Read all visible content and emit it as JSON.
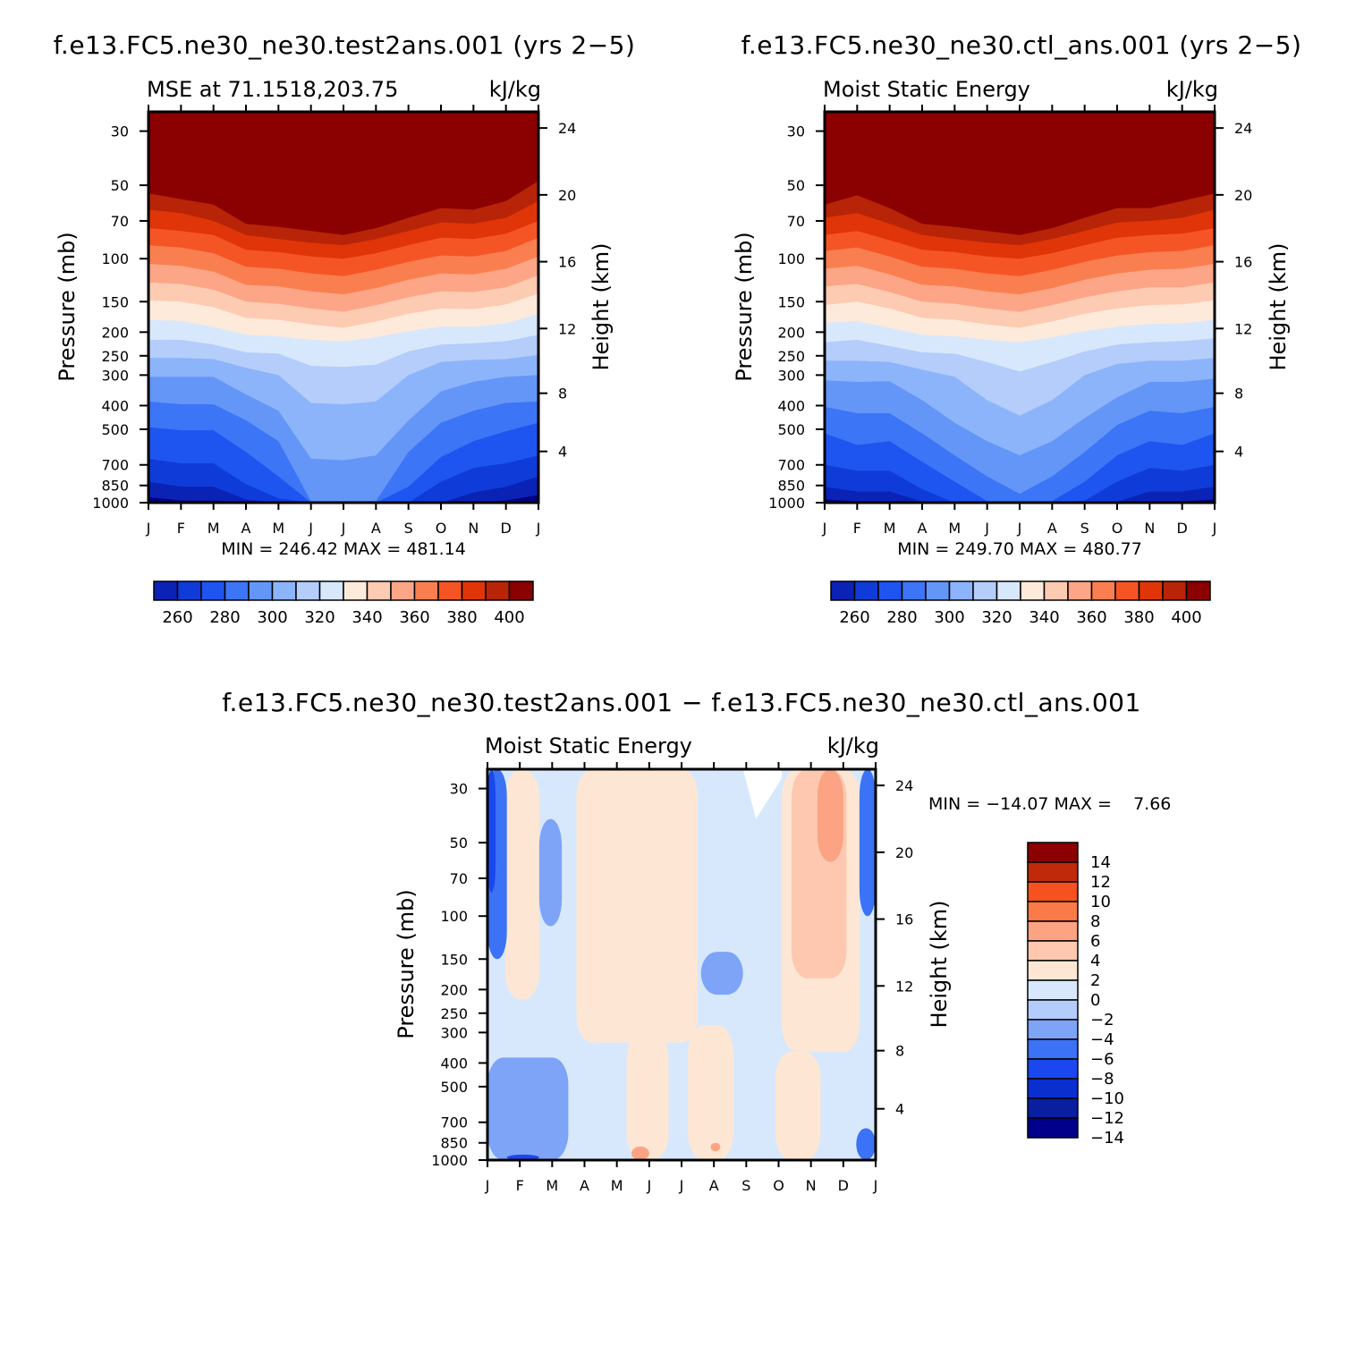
{
  "chart_data": [
    {
      "type": "heatmap",
      "panel": "top-left",
      "title": "f.e13.FC5.ne30_ne30.test2ans.001 (yrs 2−5)",
      "subtitle_left": "MSE at 71.1518,203.75",
      "subtitle_right": "kJ/kg",
      "xlabel": "",
      "ylabel": "Pressure (mb)",
      "y2label": "Height (km)",
      "x": [
        "J",
        "F",
        "M",
        "A",
        "M",
        "J",
        "J",
        "A",
        "S",
        "O",
        "N",
        "D",
        "J"
      ],
      "y_pressure_ticks": [
        30,
        50,
        70,
        100,
        150,
        200,
        250,
        300,
        400,
        500,
        700,
        850,
        1000
      ],
      "y_height_ticks": [
        4,
        8,
        12,
        16,
        20,
        24
      ],
      "ylim_mb": [
        1000,
        25
      ],
      "stats": "MIN = 246.42 MAX = 481.14",
      "colorbar": {
        "levels": [
          250,
          260,
          270,
          280,
          290,
          300,
          310,
          320,
          330,
          340,
          350,
          360,
          370,
          380,
          390,
          400
        ],
        "labels": [
          "260",
          "280",
          "300",
          "320",
          "340",
          "360",
          "380",
          "400"
        ],
        "orientation": "horizontal"
      },
      "contour_levels_pressure_mb": {
        "400": [
          54,
          57,
          60,
          72,
          74,
          77,
          80,
          75,
          68,
          62,
          63,
          58,
          48
        ],
        "390": [
          63,
          65,
          70,
          80,
          83,
          86,
          88,
          83,
          77,
          71,
          72,
          68,
          58
        ],
        "380": [
          75,
          77,
          80,
          92,
          94,
          98,
          100,
          95,
          88,
          82,
          83,
          79,
          70
        ],
        "370": [
          88,
          90,
          95,
          108,
          110,
          115,
          118,
          111,
          103,
          97,
          98,
          93,
          82
        ],
        "360": [
          105,
          107,
          113,
          128,
          130,
          136,
          140,
          132,
          122,
          115,
          116,
          110,
          98
        ],
        "350": [
          125,
          127,
          134,
          150,
          153,
          160,
          165,
          155,
          144,
          136,
          137,
          131,
          117
        ],
        "340": [
          148,
          150,
          158,
          175,
          178,
          186,
          192,
          181,
          168,
          160,
          161,
          154,
          139
        ],
        "330": [
          178,
          180,
          190,
          205,
          208,
          215,
          218,
          210,
          198,
          190,
          190,
          184,
          168
        ],
        "320": [
          215,
          215,
          225,
          242,
          245,
          275,
          278,
          272,
          240,
          225,
          222,
          218,
          205
        ],
        "310": [
          255,
          255,
          258,
          280,
          300,
          390,
          395,
          385,
          300,
          265,
          260,
          258,
          248
        ],
        "300": [
          305,
          305,
          305,
          360,
          420,
          660,
          670,
          640,
          460,
          350,
          320,
          305,
          300
        ],
        "290": [
          385,
          395,
          395,
          460,
          560,
          985,
          985,
          985,
          620,
          470,
          420,
          390,
          385
        ],
        "280": [
          490,
          505,
          505,
          620,
          780,
          1000,
          1000,
          1000,
          860,
          650,
          560,
          510,
          470
        ],
        "270": [
          660,
          690,
          690,
          840,
          960,
          1000,
          1000,
          1000,
          1000,
          820,
          720,
          690,
          640
        ],
        "260": [
          820,
          860,
          860,
          970,
          1000,
          1000,
          1000,
          1000,
          1000,
          1000,
          910,
          860,
          780
        ],
        "250": [
          950,
          980,
          980,
          1000,
          1000,
          1000,
          1000,
          1000,
          1000,
          1000,
          1000,
          980,
          930
        ]
      }
    },
    {
      "type": "heatmap",
      "panel": "top-right",
      "title": "f.e13.FC5.ne30_ne30.ctl_ans.001 (yrs 2−5)",
      "subtitle_left": "Moist Static Energy",
      "subtitle_right": "kJ/kg",
      "xlabel": "",
      "ylabel": "Pressure (mb)",
      "y2label": "Height (km)",
      "x": [
        "J",
        "F",
        "M",
        "A",
        "M",
        "J",
        "J",
        "A",
        "S",
        "O",
        "N",
        "D",
        "J"
      ],
      "y_pressure_ticks": [
        30,
        50,
        70,
        100,
        150,
        200,
        250,
        300,
        400,
        500,
        700,
        850,
        1000
      ],
      "y_height_ticks": [
        4,
        8,
        12,
        16,
        20,
        24
      ],
      "ylim_mb": [
        1000,
        25
      ],
      "stats": "MIN = 249.70 MAX = 480.77",
      "colorbar": {
        "levels": [
          250,
          260,
          270,
          280,
          290,
          300,
          310,
          320,
          330,
          340,
          350,
          360,
          370,
          380,
          390,
          400
        ],
        "labels": [
          "260",
          "280",
          "300",
          "320",
          "340",
          "360",
          "380",
          "400"
        ],
        "orientation": "horizontal"
      },
      "contour_levels_pressure_mb": {
        "400": [
          60,
          55,
          62,
          72,
          74,
          77,
          80,
          75,
          68,
          62,
          62,
          58,
          54
        ],
        "390": [
          68,
          65,
          72,
          80,
          83,
          86,
          88,
          83,
          77,
          71,
          70,
          68,
          63
        ],
        "380": [
          80,
          77,
          84,
          92,
          94,
          98,
          100,
          95,
          88,
          82,
          80,
          79,
          75
        ],
        "370": [
          93,
          90,
          98,
          108,
          110,
          115,
          118,
          111,
          103,
          97,
          94,
          93,
          88
        ],
        "360": [
          110,
          107,
          116,
          128,
          130,
          136,
          140,
          132,
          122,
          115,
          111,
          110,
          105
        ],
        "350": [
          130,
          127,
          137,
          150,
          153,
          160,
          165,
          155,
          144,
          136,
          131,
          131,
          125
        ],
        "340": [
          155,
          150,
          160,
          175,
          178,
          186,
          192,
          181,
          168,
          160,
          155,
          154,
          148
        ],
        "330": [
          183,
          180,
          192,
          205,
          208,
          215,
          220,
          210,
          198,
          190,
          185,
          184,
          178
        ],
        "320": [
          220,
          215,
          228,
          242,
          245,
          265,
          290,
          265,
          240,
          225,
          220,
          218,
          212
        ],
        "310": [
          262,
          262,
          265,
          285,
          305,
          380,
          440,
          380,
          300,
          270,
          262,
          262,
          255
        ],
        "300": [
          315,
          320,
          318,
          380,
          470,
          560,
          640,
          560,
          450,
          370,
          320,
          320,
          310
        ],
        "290": [
          405,
          430,
          430,
          520,
          640,
          780,
          920,
          780,
          620,
          480,
          420,
          430,
          405
        ],
        "280": [
          520,
          580,
          560,
          680,
          820,
          985,
          1000,
          985,
          820,
          640,
          560,
          580,
          520
        ],
        "270": [
          700,
          740,
          740,
          880,
          1000,
          1000,
          1000,
          1000,
          980,
          820,
          720,
          740,
          700
        ],
        "260": [
          860,
          900,
          900,
          990,
          1000,
          1000,
          1000,
          1000,
          1000,
          990,
          900,
          900,
          860
        ],
        "250": [
          970,
          990,
          990,
          1000,
          1000,
          1000,
          1000,
          1000,
          1000,
          1000,
          990,
          990,
          970
        ]
      }
    },
    {
      "type": "heatmap",
      "panel": "bottom",
      "title": "f.e13.FC5.ne30_ne30.test2ans.001 − f.e13.FC5.ne30_ne30.ctl_ans.001",
      "subtitle_left": "Moist Static Energy",
      "subtitle_right": "kJ/kg",
      "xlabel": "",
      "ylabel": "Pressure (mb)",
      "y2label": "Height (km)",
      "x": [
        "J",
        "F",
        "M",
        "A",
        "M",
        "J",
        "J",
        "A",
        "S",
        "O",
        "N",
        "D",
        "J"
      ],
      "y_pressure_ticks": [
        30,
        50,
        70,
        100,
        150,
        200,
        250,
        300,
        400,
        500,
        700,
        850,
        1000
      ],
      "y_height_ticks": [
        4,
        8,
        12,
        16,
        20,
        24
      ],
      "ylim_mb": [
        1000,
        25
      ],
      "stats": "MIN = −14.07 MAX =    7.66",
      "colorbar": {
        "levels": [
          -14,
          -12,
          -10,
          -8,
          -6,
          -4,
          -2,
          0,
          2,
          4,
          6,
          8,
          10,
          12,
          14
        ],
        "labels": [
          "14",
          "12",
          "10",
          "8",
          "6",
          "4",
          "2",
          "0",
          "−2",
          "−4",
          "−6",
          "−8",
          "−10",
          "−12",
          "−14"
        ],
        "orientation": "vertical"
      },
      "regions": [
        {
          "level": -2,
          "month": [
            0.0,
            12.0
          ],
          "mb": [
            25,
            1000
          ]
        },
        {
          "level": 0,
          "month": [
            0.55,
            1.6
          ],
          "mb": [
            25,
            220
          ]
        },
        {
          "level": 0,
          "month": [
            2.75,
            6.5
          ],
          "mb": [
            25,
            330
          ]
        },
        {
          "level": 0,
          "month": [
            4.3,
            5.6
          ],
          "mb": [
            300,
            1000
          ]
        },
        {
          "level": 0,
          "month": [
            6.2,
            7.6
          ],
          "mb": [
            280,
            1000
          ]
        },
        {
          "level": 0,
          "month": [
            9.1,
            11.5
          ],
          "mb": [
            25,
            360
          ]
        },
        {
          "level": 0,
          "month": [
            8.9,
            10.3
          ],
          "mb": [
            360,
            1000
          ]
        },
        {
          "level": 2,
          "month": [
            9.4,
            11.1
          ],
          "mb": [
            25,
            180
          ]
        },
        {
          "level": 4,
          "month": [
            10.2,
            11.0
          ],
          "mb": [
            25,
            60
          ]
        },
        {
          "level": 4,
          "month": [
            4.45,
            5.0
          ],
          "mb": [
            880,
            1000
          ]
        },
        {
          "level": 4,
          "month": [
            6.9,
            7.2
          ],
          "mb": [
            850,
            920
          ]
        },
        {
          "level": -4,
          "month": [
            0.0,
            2.5
          ],
          "mb": [
            380,
            1000
          ]
        },
        {
          "level": -4,
          "month": [
            1.6,
            2.3
          ],
          "mb": [
            40,
            110
          ]
        },
        {
          "level": -4,
          "month": [
            6.6,
            7.9
          ],
          "mb": [
            140,
            210
          ]
        },
        {
          "level": -6,
          "month": [
            0.0,
            0.6
          ],
          "mb": [
            25,
            150
          ]
        },
        {
          "level": -8,
          "month": [
            0.0,
            0.25
          ],
          "mb": [
            25,
            80
          ]
        },
        {
          "level": -6,
          "month": [
            11.5,
            12.0
          ],
          "mb": [
            25,
            100
          ]
        },
        {
          "level": -8,
          "month": [
            0.6,
            1.6
          ],
          "mb": [
            950,
            1000
          ]
        },
        {
          "level": -6,
          "month": [
            11.4,
            12.0
          ],
          "mb": [
            740,
            1000
          ]
        }
      ],
      "blank_region": {
        "month": [
          7.9,
          9.1
        ],
        "mb": [
          25,
          40
        ],
        "label": "no fill"
      }
    }
  ]
}
